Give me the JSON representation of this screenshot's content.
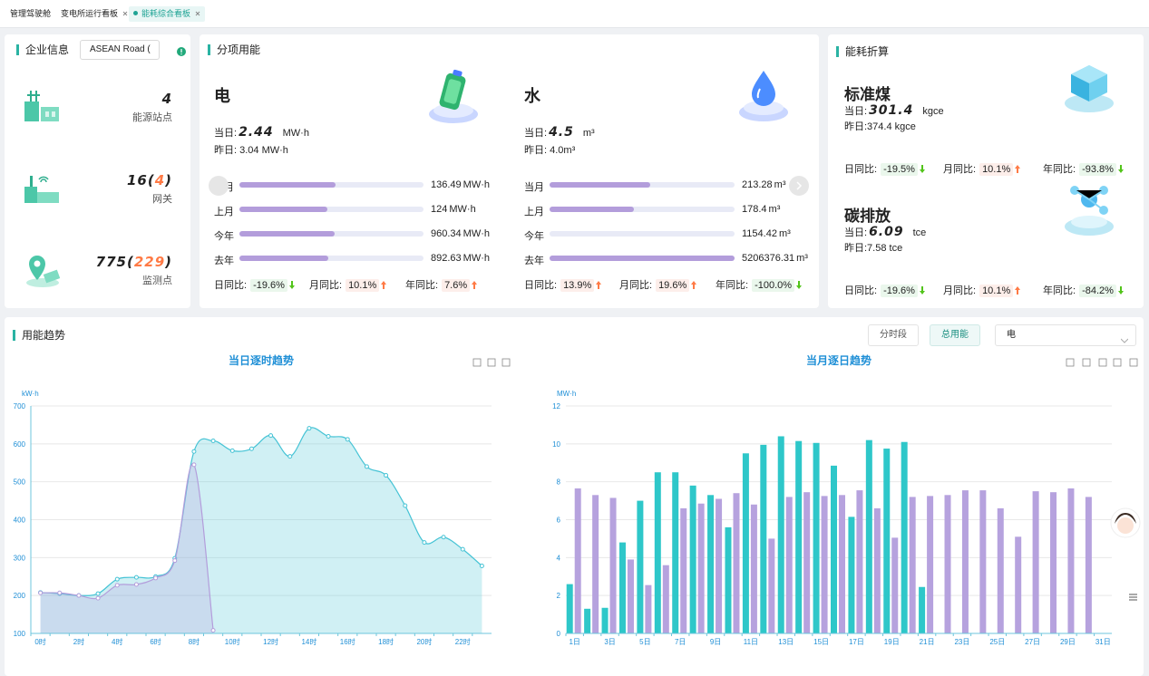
{
  "tabs": [
    "管理驾驶舱",
    "变电所运行看板",
    "能耗综合看板"
  ],
  "enterprise": {
    "title": "企业信息",
    "select": "ASEAN Road (",
    "stats": [
      {
        "value": [
          "4"
        ],
        "label": "能源站点"
      },
      {
        "value": [
          "16(",
          "4",
          ")"
        ],
        "label": "网关"
      },
      {
        "value": [
          "775(",
          "229",
          ")"
        ],
        "label": "监测点"
      }
    ]
  },
  "sub_energy": {
    "title": "分项用能",
    "items": [
      {
        "name": "电",
        "today_label": "当日:",
        "today": "2.44",
        "unit": "MW·h",
        "yesterday": "昨日: 3.04 MW·h",
        "rows": [
          {
            "label": "当月",
            "value": 136.49,
            "unit": "MW·h"
          },
          {
            "label": "上月",
            "value": 124,
            "unit": "MW·h"
          },
          {
            "label": "今年",
            "value": 960.34,
            "unit": "MW·h"
          },
          {
            "label": "去年",
            "value": 892.63,
            "unit": "MW·h"
          }
        ],
        "ratios": [
          {
            "label": "日同比:",
            "value": "-19.6%",
            "trend": "down"
          },
          {
            "label": "月同比:",
            "value": "10.1%",
            "trend": "up"
          },
          {
            "label": "年同比:",
            "value": "7.6%",
            "trend": "up"
          }
        ]
      },
      {
        "name": "水",
        "today_label": "当日:",
        "today": "4.5",
        "unit": "m³",
        "yesterday": "昨日: 4.0m³",
        "rows": [
          {
            "label": "当月",
            "value": 213.28,
            "unit": "m³"
          },
          {
            "label": "上月",
            "value": 178.4,
            "unit": "m³"
          },
          {
            "label": "今年",
            "value": 1154.42,
            "unit": "m³"
          },
          {
            "label": "去年",
            "value": 5206376.31,
            "unit": "m³"
          }
        ],
        "ratios": [
          {
            "label": "日同比:",
            "value": "13.9%",
            "trend": "up"
          },
          {
            "label": "月同比:",
            "value": "19.6%",
            "trend": "up"
          },
          {
            "label": "年同比:",
            "value": "-100.0%",
            "trend": "down"
          }
        ]
      }
    ]
  },
  "conversion": {
    "title": "能耗折算",
    "items": [
      {
        "name": "标准煤",
        "today_label": "当日:",
        "today": "301.4",
        "unit": "kgce",
        "yesterday": "昨日:374.4 kgce",
        "ratios": [
          {
            "label": "日同比:",
            "value": "-19.5%",
            "trend": "down"
          },
          {
            "label": "月同比:",
            "value": "10.1%",
            "trend": "up"
          },
          {
            "label": "年同比:",
            "value": "-93.8%",
            "trend": "down"
          }
        ]
      },
      {
        "name": "碳排放",
        "today_label": "当日:",
        "today": "6.09",
        "unit": "tce",
        "yesterday": "昨日:7.58 tce",
        "ratios": [
          {
            "label": "日同比:",
            "value": "-19.6%",
            "trend": "down"
          },
          {
            "label": "月同比:",
            "value": "10.1%",
            "trend": "up"
          },
          {
            "label": "年同比:",
            "value": "-84.2%",
            "trend": "down"
          }
        ]
      }
    ]
  },
  "trend": {
    "title": "用能趋势",
    "buttons": [
      "分时段",
      "总用能"
    ],
    "active": 1,
    "select": "电",
    "charts": [
      {
        "type": "line",
        "title": "当日逐时趋势",
        "unit": "kW·h",
        "smooth": true,
        "area": true,
        "categories": [
          "0时",
          null,
          "2时",
          null,
          "4时",
          null,
          "6时",
          null,
          "8时",
          null,
          "10时",
          null,
          "12时",
          null,
          "14时",
          null,
          "16时",
          null,
          "18时",
          null,
          "20时",
          null,
          "22时",
          null
        ],
        "series": [
          {
            "color": "#45c3d5",
            "values": [
              208,
              205,
              200,
              205,
              243,
              248,
              250,
              298,
              580,
              608,
              582,
              587,
              622,
              567,
              641,
              620,
              612,
              540,
              517,
              437,
              340,
              354,
              322,
              278
            ]
          },
          {
            "color": "#b39ddb",
            "values": [
              207,
              207,
              200,
              193,
              227,
              229,
              246,
              292,
              545,
              108,
              null,
              null,
              null,
              null,
              null,
              null,
              null,
              null,
              null,
              null,
              null,
              null,
              null,
              null
            ]
          }
        ],
        "ylim": [
          100,
          700
        ],
        "yticks": [
          100,
          200,
          300,
          400,
          500,
          600,
          700
        ]
      },
      {
        "type": "bar",
        "title": "当月逐日趋势",
        "unit": "MW·h",
        "categories": [
          "1日",
          null,
          "3日",
          null,
          "5日",
          null,
          "7日",
          null,
          "9日",
          null,
          "11日",
          null,
          "13日",
          null,
          "15日",
          null,
          "17日",
          null,
          "19日",
          null,
          "21日",
          null,
          "23日",
          null,
          "25日",
          null,
          "27日",
          null,
          "29日",
          null,
          "31日"
        ],
        "series": [
          {
            "color": "#2ec7c9",
            "values": [
              2.6,
              1.3,
              1.35,
              4.8,
              7.0,
              8.5,
              8.5,
              7.8,
              7.3,
              5.6,
              9.5,
              9.95,
              10.4,
              10.15,
              10.05,
              8.85,
              6.15,
              10.2,
              9.75,
              10.1,
              2.45,
              null,
              null,
              null,
              null,
              null,
              null,
              null,
              null,
              null,
              null
            ]
          },
          {
            "color": "#b6a2de",
            "values": [
              7.65,
              7.3,
              7.15,
              3.9,
              2.55,
              3.6,
              6.6,
              6.85,
              7.1,
              7.4,
              6.8,
              5.0,
              7.2,
              7.45,
              7.25,
              7.3,
              7.55,
              6.6,
              5.05,
              7.2,
              7.25,
              7.3,
              7.55,
              7.55,
              6.6,
              5.1,
              7.5,
              7.45,
              7.65,
              7.2,
              null
            ]
          }
        ],
        "ylim": [
          0,
          12
        ],
        "yticks": [
          0,
          2,
          4,
          6,
          8,
          10,
          12
        ]
      }
    ]
  }
}
